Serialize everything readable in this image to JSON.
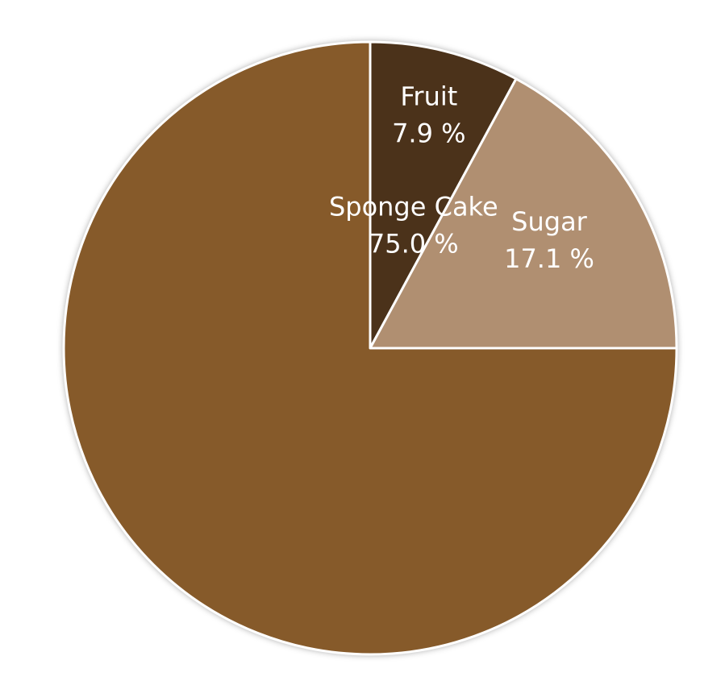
{
  "chart_data": {
    "type": "pie",
    "categories": [
      "Fruit",
      "Sugar",
      "Sponge Cake"
    ],
    "values": [
      7.9,
      17.1,
      75.0
    ],
    "value_labels": [
      "7.9 %",
      "17.1 %",
      "75.0 %"
    ],
    "colors": [
      "#4b321a",
      "#b08f71",
      "#865a2a"
    ]
  }
}
